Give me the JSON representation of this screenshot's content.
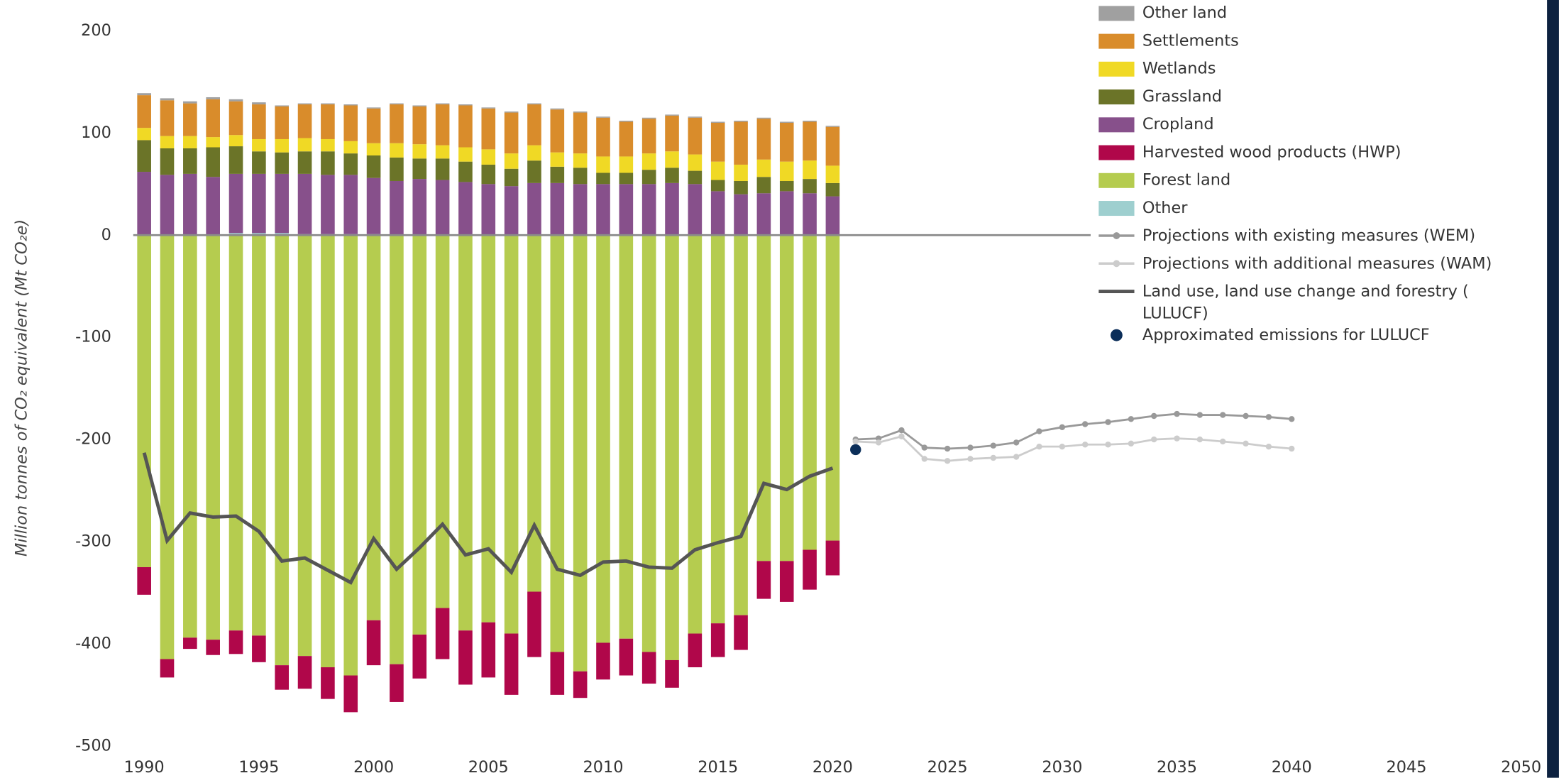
{
  "chart_data": {
    "type": "bar",
    "y_label": "Million tonnes of CO₂ equivalent (Mt CO₂e)",
    "x": [
      1990,
      1991,
      1992,
      1993,
      1994,
      1995,
      1996,
      1997,
      1998,
      1999,
      2000,
      2001,
      2002,
      2003,
      2004,
      2005,
      2006,
      2007,
      2008,
      2009,
      2010,
      2011,
      2012,
      2013,
      2014,
      2015,
      2016,
      2017,
      2018,
      2019,
      2020
    ],
    "xlim": [
      1990,
      2050
    ],
    "xticks": [
      1990,
      1995,
      2000,
      2005,
      2010,
      2015,
      2020,
      2025,
      2030,
      2035,
      2040,
      2045,
      2050
    ],
    "ylim": [
      -500,
      200
    ],
    "yticks": [
      200,
      100,
      0,
      -100,
      -200,
      -300,
      -400,
      -500
    ],
    "series": [
      {
        "name": "Other land",
        "color": "#a0a0a0",
        "values": [
          2,
          2,
          2,
          2,
          2,
          2,
          1,
          1,
          1,
          1,
          1,
          1,
          1,
          1,
          1,
          1,
          1,
          1,
          1,
          1,
          1,
          1,
          1,
          1,
          1,
          1,
          1,
          1,
          1,
          1,
          1
        ]
      },
      {
        "name": "Settlements",
        "color": "#d98c2b",
        "values": [
          32,
          35,
          32,
          37,
          33,
          34,
          32,
          33,
          34,
          35,
          34,
          38,
          37,
          40,
          41,
          40,
          40,
          40,
          42,
          40,
          38,
          34,
          34,
          35,
          36,
          38,
          42,
          40,
          38,
          38,
          38
        ]
      },
      {
        "name": "Wetlands",
        "color": "#f0d925",
        "values": [
          12,
          12,
          12,
          10,
          11,
          12,
          13,
          13,
          12,
          12,
          12,
          14,
          14,
          13,
          14,
          15,
          15,
          15,
          14,
          14,
          16,
          16,
          16,
          16,
          16,
          18,
          16,
          17,
          19,
          18,
          17
        ]
      },
      {
        "name": "Grassland",
        "color": "#6b7428",
        "values": [
          31,
          26,
          25,
          29,
          27,
          22,
          21,
          22,
          23,
          21,
          22,
          23,
          20,
          21,
          20,
          19,
          17,
          22,
          16,
          16,
          11,
          11,
          14,
          15,
          13,
          11,
          13,
          16,
          10,
          14,
          13
        ]
      },
      {
        "name": "Cropland",
        "color": "#87508b",
        "values": [
          62,
          59,
          60,
          57,
          58,
          58,
          58,
          59,
          58,
          58,
          55,
          53,
          55,
          54,
          52,
          50,
          48,
          51,
          51,
          50,
          50,
          50,
          50,
          51,
          50,
          43,
          40,
          41,
          43,
          41,
          38
        ]
      },
      {
        "name": "Harvested wood products (HWP)",
        "color": "#b0074a",
        "values": [
          -27,
          -18,
          -11,
          -15,
          -23,
          -26,
          -24,
          -32,
          -31,
          -36,
          -44,
          -37,
          -43,
          -50,
          -53,
          -54,
          -60,
          -64,
          -42,
          -26,
          -36,
          -36,
          -31,
          -27,
          -33,
          -33,
          -34,
          -37,
          -40,
          -39,
          -34
        ]
      },
      {
        "name": "Forest land",
        "color": "#b5cc4f",
        "values": [
          -325,
          -415,
          -394,
          -396,
          -387,
          -392,
          -421,
          -412,
          -423,
          -431,
          -377,
          -420,
          -391,
          -365,
          -387,
          -379,
          -390,
          -349,
          -408,
          -427,
          -399,
          -395,
          -408,
          -416,
          -390,
          -380,
          -372,
          -319,
          -319,
          -308,
          -299
        ]
      },
      {
        "name": "Other",
        "color": "#9ecfcf",
        "values": [
          0,
          0,
          0,
          0,
          2,
          2,
          2,
          1,
          1,
          1,
          1,
          0,
          0,
          0,
          0,
          0,
          0,
          0,
          0,
          0,
          0,
          0,
          0,
          0,
          0,
          0,
          0,
          0,
          0,
          0,
          0
        ]
      },
      {
        "name": "Projections with existing measures (WEM)",
        "color": "#999999",
        "type": "line",
        "markers": true,
        "x": [
          2021,
          2022,
          2023,
          2024,
          2025,
          2026,
          2027,
          2028,
          2029,
          2030,
          2031,
          2032,
          2033,
          2034,
          2035,
          2036,
          2037,
          2038,
          2039,
          2040
        ],
        "values": [
          -200,
          -199,
          -191,
          -208,
          -209,
          -208,
          -206,
          -203,
          -192,
          -188,
          -185,
          -183,
          -180,
          -177,
          -175,
          -176,
          -176,
          -177,
          -178,
          -180
        ]
      },
      {
        "name": "Projections with additional measures (WAM)",
        "color": "#cccccc",
        "type": "line",
        "markers": true,
        "x": [
          2021,
          2022,
          2023,
          2024,
          2025,
          2026,
          2027,
          2028,
          2029,
          2030,
          2031,
          2032,
          2033,
          2034,
          2035,
          2036,
          2037,
          2038,
          2039,
          2040
        ],
        "values": [
          -202,
          -203,
          -197,
          -219,
          -221,
          -219,
          -218,
          -217,
          -207,
          -207,
          -205,
          -205,
          -204,
          -200,
          -199,
          -200,
          -202,
          -204,
          -207,
          -209
        ]
      },
      {
        "name": "Land use, land use change and forestry ( LULUCF)",
        "color": "#555555",
        "type": "line",
        "markers": false,
        "x": [
          1990,
          1991,
          1992,
          1993,
          1994,
          1995,
          1996,
          1997,
          1998,
          1999,
          2000,
          2001,
          2002,
          2003,
          2004,
          2005,
          2006,
          2007,
          2008,
          2009,
          2010,
          2011,
          2012,
          2013,
          2014,
          2015,
          2016,
          2017,
          2018,
          2019,
          2020
        ],
        "values": [
          -213,
          -299,
          -272,
          -276,
          -275,
          -290,
          -319,
          -316,
          -328,
          -340,
          -297,
          -327,
          -306,
          -283,
          -313,
          -307,
          -330,
          -284,
          -327,
          -333,
          -320,
          -319,
          -325,
          -326,
          -308,
          -301,
          -295,
          -243,
          -249,
          -236,
          -228
        ]
      },
      {
        "name": "Approximated emissions for LULUCF",
        "color": "#0b2e59",
        "type": "scatter",
        "x": [
          2021
        ],
        "values": [
          -210
        ]
      }
    ]
  }
}
